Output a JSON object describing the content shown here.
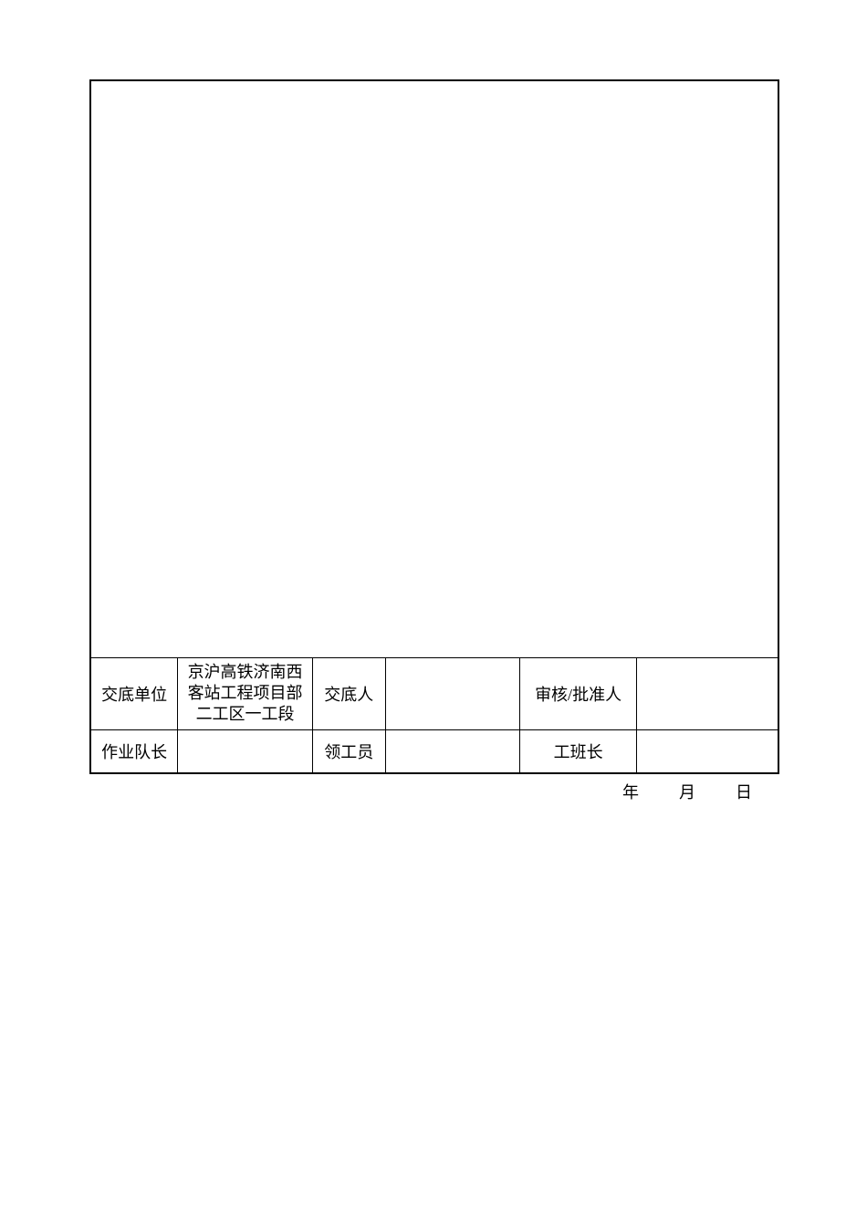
{
  "table": {
    "row1": {
      "label1": "交底单位",
      "value1_line1": "京沪高铁济南西",
      "value1_line2": "客站工程项目部",
      "value1_line3": "二工区一工段",
      "label2": "交底人",
      "value2": "",
      "label3": "审核/批准人",
      "value3": ""
    },
    "row2": {
      "label1": "作业队长",
      "value1": "",
      "label2": "领工员",
      "value2": "",
      "label3": "工班长",
      "value3": ""
    }
  },
  "date": {
    "year_label": "年",
    "month_label": "月",
    "day_label": "日"
  },
  "style": {
    "border_color": "#000000",
    "background_color": "#ffffff",
    "font_size": 18,
    "text_color": "#000000"
  }
}
